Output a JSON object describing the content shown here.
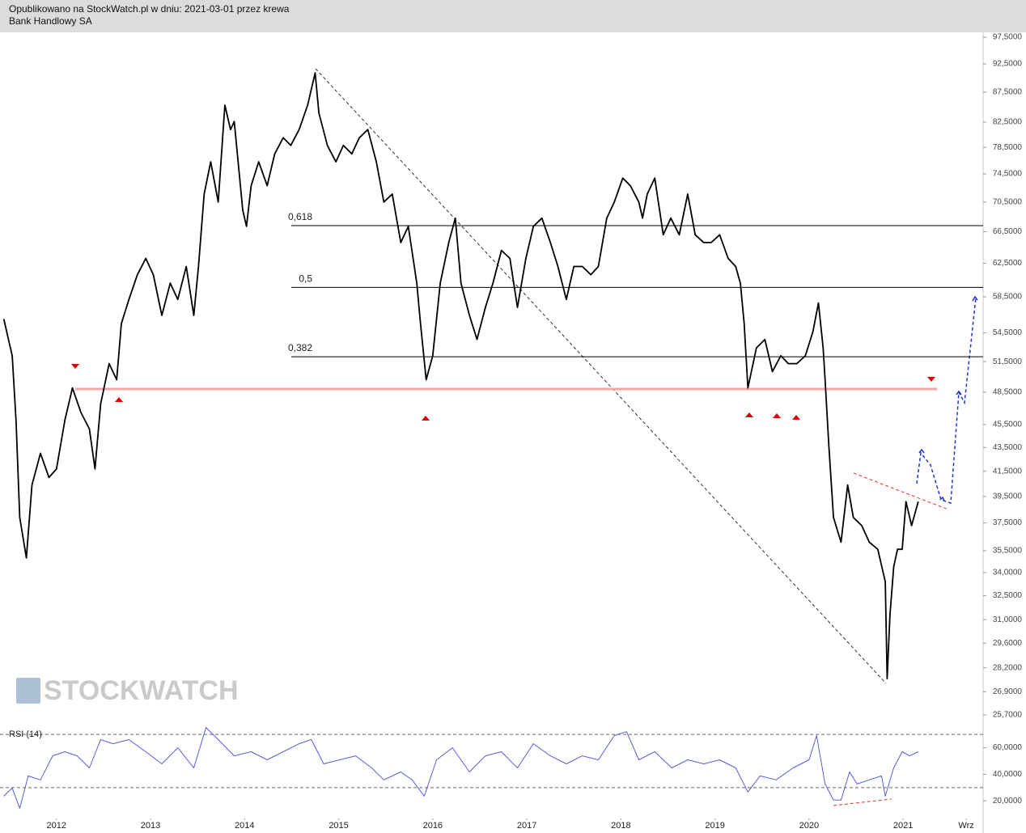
{
  "header": {
    "line1": "Opublikowano na StockWatch.pl w dniu: 2021-03-01 przez krewa",
    "line2": "Bank Handlowy SA"
  },
  "watermark": "STOCKWATCH",
  "chart_data": [
    {
      "type": "line",
      "color": "#000000",
      "log_scale": true,
      "xlim": [
        2011.4,
        2021.85
      ],
      "ylim": [
        25.7,
        97.5
      ],
      "yticks": [
        {
          "value": 97.5,
          "label": "97,5000"
        },
        {
          "value": 92.5,
          "label": "92,5000"
        },
        {
          "value": 87.5,
          "label": "87,5000"
        },
        {
          "value": 82.5,
          "label": "82,5000"
        },
        {
          "value": 78.5,
          "label": "78,5000"
        },
        {
          "value": 74.5,
          "label": "74,5000"
        },
        {
          "value": 70.5,
          "label": "70,5000"
        },
        {
          "value": 66.5,
          "label": "66,5000"
        },
        {
          "value": 62.5,
          "label": "62,5000"
        },
        {
          "value": 58.5,
          "label": "58,5000"
        },
        {
          "value": 54.5,
          "label": "54,5000"
        },
        {
          "value": 51.5,
          "label": "51,5000"
        },
        {
          "value": 48.5,
          "label": "48,5000"
        },
        {
          "value": 45.5,
          "label": "45,5000"
        },
        {
          "value": 43.5,
          "label": "43,5000"
        },
        {
          "value": 41.5,
          "label": "41,5000"
        },
        {
          "value": 39.5,
          "label": "39,5000"
        },
        {
          "value": 37.5,
          "label": "37,5000"
        },
        {
          "value": 35.5,
          "label": "35,5000"
        },
        {
          "value": 34,
          "label": "34,0000"
        },
        {
          "value": 32.5,
          "label": "32,5000"
        },
        {
          "value": 31,
          "label": "31,0000"
        },
        {
          "value": 29.6,
          "label": "29,6000"
        },
        {
          "value": 28.2,
          "label": "28,2000"
        },
        {
          "value": 26.9,
          "label": "26,9000"
        },
        {
          "value": 25.7,
          "label": "25,7000"
        }
      ],
      "levels": [
        {
          "label": "0,618",
          "value": 67.3
        },
        {
          "label": "0,5",
          "value": 59.6
        },
        {
          "label": "0,382",
          "value": 52.0
        }
      ],
      "support": {
        "value": 48.8,
        "color": "#f4a6a6"
      },
      "x": [
        2011.44,
        2011.53,
        2011.57,
        2011.61,
        2011.68,
        2011.74,
        2011.83,
        2011.92,
        2012.0,
        2012.09,
        2012.17,
        2012.26,
        2012.35,
        2012.41,
        2012.47,
        2012.56,
        2012.64,
        2012.69,
        2012.77,
        2012.86,
        2012.95,
        2013.03,
        2013.12,
        2013.21,
        2013.29,
        2013.38,
        2013.46,
        2013.51,
        2013.57,
        2013.64,
        2013.72,
        2013.79,
        2013.85,
        2013.89,
        2013.98,
        2014.02,
        2014.07,
        2014.15,
        2014.24,
        2014.32,
        2014.41,
        2014.49,
        2014.58,
        2014.67,
        2014.75,
        2014.79,
        2014.88,
        2014.97,
        2015.05,
        2015.14,
        2015.22,
        2015.31,
        2015.4,
        2015.48,
        2015.57,
        2015.66,
        2015.74,
        2015.83,
        2015.87,
        2015.93,
        2016.0,
        2016.08,
        2016.17,
        2016.24,
        2016.3,
        2016.39,
        2016.47,
        2016.56,
        2016.64,
        2016.73,
        2016.82,
        2016.9,
        2016.99,
        2017.07,
        2017.16,
        2017.25,
        2017.33,
        2017.42,
        2017.5,
        2017.59,
        2017.68,
        2017.76,
        2017.85,
        2017.93,
        2018.02,
        2018.1,
        2018.19,
        2018.23,
        2018.28,
        2018.36,
        2018.45,
        2018.53,
        2018.62,
        2018.71,
        2018.79,
        2018.88,
        2018.96,
        2019.05,
        2019.14,
        2019.22,
        2019.27,
        2019.31,
        2019.35,
        2019.44,
        2019.53,
        2019.61,
        2019.7,
        2019.78,
        2019.87,
        2019.96,
        2020.04,
        2020.1,
        2020.15,
        2020.17,
        2020.21,
        2020.26,
        2020.34,
        2020.41,
        2020.47,
        2020.56,
        2020.64,
        2020.73,
        2020.81,
        2020.83,
        2020.86,
        2020.9,
        2020.94,
        2020.99,
        2021.03,
        2021.09,
        2021.16
      ],
      "values": [
        56.0,
        52.1,
        45.9,
        37.9,
        35.0,
        40.4,
        43.0,
        41.0,
        41.7,
        45.9,
        48.9,
        46.6,
        45.1,
        41.7,
        47.4,
        51.3,
        49.7,
        55.5,
        58.2,
        61.1,
        63.1,
        61.1,
        56.4,
        60.1,
        58.2,
        62.1,
        56.4,
        62.1,
        71.6,
        76.3,
        70.5,
        85.3,
        81.3,
        82.6,
        69.4,
        67.2,
        72.8,
        76.3,
        72.8,
        77.5,
        80.0,
        78.8,
        81.3,
        85.3,
        90.9,
        84.0,
        78.8,
        76.3,
        78.8,
        77.5,
        80.0,
        81.3,
        76.3,
        70.5,
        71.6,
        65.1,
        67.2,
        60.1,
        55.5,
        49.7,
        52.1,
        60.1,
        65.1,
        68.3,
        60.1,
        56.4,
        53.8,
        57.3,
        60.1,
        64.1,
        63.1,
        57.3,
        63.1,
        67.2,
        68.3,
        65.1,
        62.1,
        58.2,
        62.1,
        62.1,
        61.1,
        62.1,
        68.3,
        70.5,
        73.9,
        72.8,
        70.5,
        68.3,
        71.6,
        73.9,
        66.1,
        68.3,
        66.1,
        71.6,
        66.1,
        65.1,
        65.1,
        66.1,
        63.1,
        62.1,
        60.1,
        55.5,
        48.9,
        52.9,
        53.8,
        50.5,
        52.1,
        51.3,
        51.3,
        52.1,
        54.6,
        57.8,
        52.9,
        49.7,
        43.7,
        37.9,
        36.1,
        40.4,
        37.9,
        37.3,
        36.1,
        35.6,
        33.4,
        27.6,
        31.3,
        34.4,
        35.6,
        35.6,
        39.1,
        37.3,
        39.1
      ]
    },
    {
      "type": "line",
      "title": "RSI (14)",
      "color": "#5a5ae0",
      "xlim": [
        2011.4,
        2021.85
      ],
      "ylim": [
        8,
        78
      ],
      "xticks": [
        2012,
        2013,
        2014,
        2015,
        2016,
        2017,
        2018,
        2019,
        2020,
        2021,
        {
          "value": 2021.67,
          "label": "Wrz"
        }
      ],
      "yticks": [
        {
          "value": 60,
          "label": "60,0000"
        },
        {
          "value": 40,
          "label": "40,0000"
        },
        {
          "value": 20,
          "label": "20,0000"
        }
      ],
      "levels": [
        70,
        30
      ],
      "x": [
        2011.44,
        2011.53,
        2011.61,
        2011.7,
        2011.83,
        2011.96,
        2012.09,
        2012.22,
        2012.35,
        2012.47,
        2012.6,
        2012.77,
        2012.95,
        2013.12,
        2013.29,
        2013.46,
        2013.59,
        2013.72,
        2013.89,
        2014.07,
        2014.24,
        2014.41,
        2014.58,
        2014.71,
        2014.84,
        2015.01,
        2015.18,
        2015.35,
        2015.48,
        2015.66,
        2015.78,
        2015.91,
        2016.04,
        2016.21,
        2016.39,
        2016.56,
        2016.73,
        2016.9,
        2017.07,
        2017.25,
        2017.42,
        2017.59,
        2017.76,
        2017.93,
        2018.06,
        2018.19,
        2018.36,
        2018.54,
        2018.71,
        2018.88,
        2019.05,
        2019.22,
        2019.35,
        2019.48,
        2019.65,
        2019.83,
        2020.0,
        2020.08,
        2020.17,
        2020.26,
        2020.34,
        2020.43,
        2020.51,
        2020.64,
        2020.77,
        2020.81,
        2020.9,
        2020.99,
        2021.07,
        2021.16
      ],
      "values": [
        23.6,
        29.7,
        14.5,
        38.8,
        35.8,
        53.9,
        57.0,
        53.9,
        44.8,
        66.1,
        63.0,
        66.1,
        57.0,
        47.9,
        60.0,
        44.8,
        75.2,
        66.1,
        53.9,
        57.0,
        50.9,
        57.0,
        63.0,
        66.1,
        47.9,
        50.9,
        53.9,
        44.8,
        35.8,
        41.8,
        35.8,
        23.6,
        50.9,
        60.0,
        41.8,
        53.9,
        57.0,
        44.8,
        63.0,
        53.9,
        47.9,
        53.9,
        50.9,
        69.1,
        72.1,
        50.9,
        57.0,
        44.8,
        50.9,
        47.9,
        50.9,
        44.8,
        26.7,
        38.8,
        35.8,
        44.8,
        50.9,
        69.1,
        32.7,
        20.6,
        20.6,
        41.8,
        32.7,
        35.8,
        38.8,
        23.6,
        44.8,
        57.0,
        53.9,
        57.0
      ]
    }
  ]
}
